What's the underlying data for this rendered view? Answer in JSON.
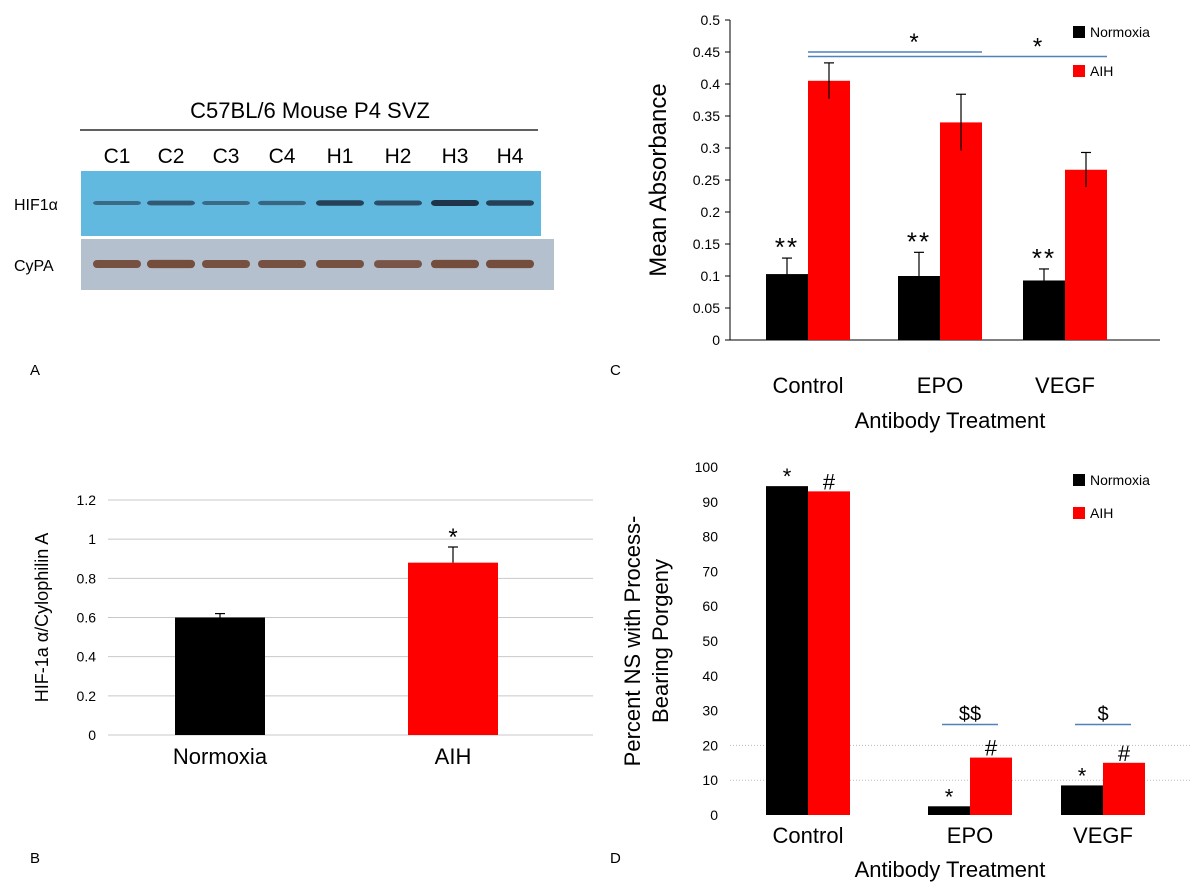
{
  "panels": {
    "a": {
      "letter": "A",
      "blot": {
        "title": "C57BL/6 Mouse P4 SVZ",
        "lanes": [
          "C1",
          "C2",
          "C3",
          "C4",
          "H1",
          "H2",
          "H3",
          "H4"
        ],
        "rows": [
          {
            "label": "HIF1α",
            "background": "#62b9df",
            "band_color": "#1c2c40",
            "band_intensity": [
              0.35,
              0.55,
              0.35,
              0.4,
              0.85,
              0.7,
              1.0,
              0.85
            ]
          },
          {
            "label": "CyPA",
            "background": "#b4c0cd",
            "band_color": "#6a3a25",
            "band_intensity": [
              0.8,
              0.85,
              0.8,
              0.8,
              0.8,
              0.75,
              0.85,
              0.85
            ]
          }
        ]
      }
    },
    "b": {
      "letter": "B"
    },
    "c": {
      "letter": "C"
    },
    "d": {
      "letter": "D"
    }
  },
  "chart_data": [
    {
      "id": "b",
      "type": "bar",
      "categories": [
        "Normoxia",
        "AIH"
      ],
      "values": [
        0.6,
        0.88
      ],
      "errors": [
        0.02,
        0.08
      ],
      "colors": [
        "#000000",
        "#ff0000"
      ],
      "annotations": [
        "",
        "*"
      ],
      "xlabel": "",
      "ylabel": "HIF-1a α/Cylophilin A",
      "ylim": [
        0,
        1.2
      ],
      "yticks": [
        "0",
        "0.2",
        "0.4",
        "0.6",
        "0.8",
        "1",
        "1.2"
      ],
      "grid": true,
      "legend": null
    },
    {
      "id": "c",
      "type": "bar",
      "categories": [
        "Control",
        "EPO",
        "VEGF"
      ],
      "series": [
        {
          "name": "Normoxia",
          "color": "#000000",
          "values": [
            0.103,
            0.1,
            0.093
          ],
          "errors": [
            0.025,
            0.037,
            0.018
          ],
          "annotations": [
            "**",
            "**",
            "**"
          ]
        },
        {
          "name": "AIH",
          "color": "#ff0000",
          "values": [
            0.405,
            0.34,
            0.266
          ],
          "errors": [
            0.028,
            0.044,
            0.027
          ],
          "annotations": [
            "",
            "",
            ""
          ]
        }
      ],
      "xlabel": "Antibody Treatment",
      "ylabel": "Mean Absorbance",
      "ylim": [
        0,
        0.5
      ],
      "yticks": [
        "0",
        "0.05",
        "0.1",
        "0.15",
        "0.2",
        "0.25",
        "0.3",
        "0.35",
        "0.4",
        "0.45",
        "0.5"
      ],
      "grid": false,
      "legend": "top-right",
      "brackets": [
        {
          "from": "Control",
          "to": "EPO",
          "label": "*",
          "level": 0.45
        },
        {
          "from": "Control",
          "to": "VEGF",
          "label": "*",
          "level": 0.443
        }
      ]
    },
    {
      "id": "d",
      "type": "bar",
      "categories": [
        "Control",
        "EPO",
        "VEGF"
      ],
      "series": [
        {
          "name": "Normoxia",
          "color": "#000000",
          "values": [
            94.5,
            2.5,
            8.5
          ],
          "annotations": [
            "*",
            "*",
            "*"
          ]
        },
        {
          "name": "AIH",
          "color": "#ff0000",
          "values": [
            93,
            16.5,
            15
          ],
          "annotations": [
            "#",
            "#",
            "#"
          ]
        }
      ],
      "xlabel": "Antibody Treatment",
      "ylabel_lines": [
        "Percent NS with Process-",
        "Bearing Porgeny"
      ],
      "ylim": [
        0,
        100
      ],
      "yticks": [
        "0",
        "10",
        "20",
        "30",
        "40",
        "50",
        "60",
        "70",
        "80",
        "90",
        "100"
      ],
      "gridlines_at": [
        10,
        20
      ],
      "legend": "top-right",
      "pair_marks": [
        {
          "category": "EPO",
          "label": "$$",
          "level": 26
        },
        {
          "category": "VEGF",
          "label": "$",
          "level": 26
        }
      ]
    }
  ]
}
